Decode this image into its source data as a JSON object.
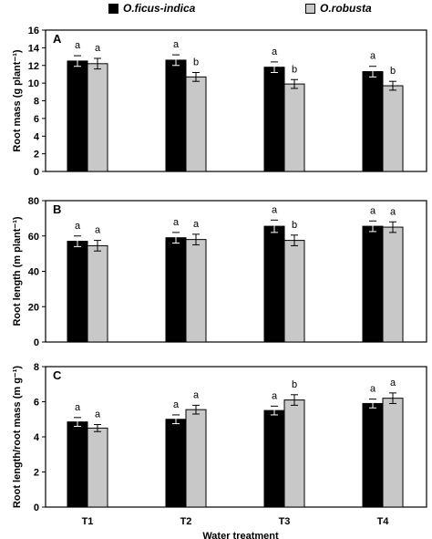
{
  "legend": {
    "items": [
      {
        "label": "O.ficus-indica",
        "color": "#000000"
      },
      {
        "label": "O.robusta",
        "color": "#c8c8c8"
      }
    ]
  },
  "chart_data": [
    {
      "type": "bar",
      "panel_label": "A",
      "ylabel": "Root mass (g plant⁻¹)",
      "xlabel": "",
      "categories": [
        "T1",
        "T2",
        "T3",
        "T4"
      ],
      "ylim": [
        0,
        16
      ],
      "yticks": [
        0,
        2,
        4,
        6,
        8,
        10,
        12,
        14,
        16
      ],
      "show_x_ticklabels": false,
      "series": [
        {
          "name": "O.ficus-indica",
          "color": "#000000",
          "values": [
            12.5,
            12.6,
            11.8,
            11.3
          ],
          "errors": [
            0.6,
            0.6,
            0.6,
            0.6
          ],
          "letters": [
            "a",
            "a",
            "a",
            "a"
          ]
        },
        {
          "name": "O.robusta",
          "color": "#c8c8c8",
          "values": [
            12.2,
            10.7,
            9.9,
            9.7
          ],
          "errors": [
            0.6,
            0.5,
            0.5,
            0.5
          ],
          "letters": [
            "a",
            "b",
            "b",
            "b"
          ]
        }
      ]
    },
    {
      "type": "bar",
      "panel_label": "B",
      "ylabel": "Root length (m plant⁻¹)",
      "xlabel": "",
      "categories": [
        "T1",
        "T2",
        "T3",
        "T4"
      ],
      "ylim": [
        0,
        80
      ],
      "yticks": [
        0,
        20,
        40,
        60,
        80
      ],
      "show_x_ticklabels": false,
      "series": [
        {
          "name": "O.ficus-indica",
          "color": "#000000",
          "values": [
            57,
            59,
            65.5,
            65.5
          ],
          "errors": [
            3,
            3,
            3.5,
            3
          ],
          "letters": [
            "a",
            "a",
            "a",
            "a"
          ]
        },
        {
          "name": "O.robusta",
          "color": "#c8c8c8",
          "values": [
            54.5,
            58,
            57.5,
            65
          ],
          "errors": [
            3,
            3,
            3,
            3
          ],
          "letters": [
            "a",
            "a",
            "b",
            "a"
          ]
        }
      ]
    },
    {
      "type": "bar",
      "panel_label": "C",
      "ylabel": "Root length/root mass (m g⁻¹)",
      "xlabel": "Water treatment",
      "categories": [
        "T1",
        "T2",
        "T3",
        "T4"
      ],
      "ylim": [
        0,
        8
      ],
      "yticks": [
        0,
        2,
        4,
        6,
        8
      ],
      "show_x_ticklabels": true,
      "series": [
        {
          "name": "O.ficus-indica",
          "color": "#000000",
          "values": [
            4.85,
            5.0,
            5.5,
            5.9
          ],
          "errors": [
            0.25,
            0.25,
            0.25,
            0.25
          ],
          "letters": [
            "a",
            "a",
            "a",
            "a"
          ]
        },
        {
          "name": "O.robusta",
          "color": "#c8c8c8",
          "values": [
            4.5,
            5.55,
            6.1,
            6.2
          ],
          "errors": [
            0.2,
            0.25,
            0.3,
            0.3
          ],
          "letters": [
            "a",
            "a",
            "b",
            "a"
          ]
        }
      ]
    }
  ]
}
